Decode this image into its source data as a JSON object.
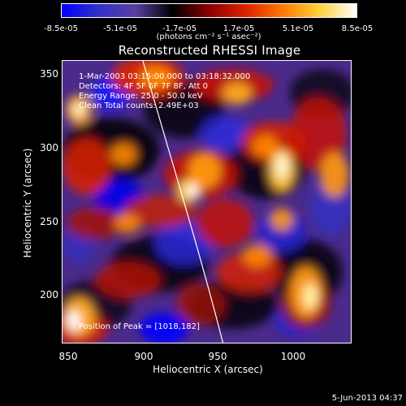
{
  "colorbar": {
    "ticks": [
      "-8.5e-05",
      "-5.1e-05",
      "-1.7e-05",
      "1.7e-05",
      "5.1e-05",
      "8.5e-05"
    ],
    "unit_label": "(photons cm⁻² s⁻¹ asec⁻²)"
  },
  "title": "Reconstructed RHESSI Image",
  "info": {
    "time_range": "1-Mar-2003 03:15:00.000 to 03:18:32.000",
    "detectors": "Detectors: 4F 5F 6F 7F 8F, Att 0",
    "energy_range": "Energy Range: 25.0 - 50.0 keV",
    "clean": "Clean    Total counts: 2.49E+03",
    "peak": "Position of Peak = [1018,182]"
  },
  "x_axis": {
    "label": "Heliocentric X (arcsec)",
    "ticks": [
      "850",
      "900",
      "950",
      "1000"
    ]
  },
  "y_axis": {
    "label": "Heliocentric Y (arcsec)",
    "ticks": [
      "350",
      "300",
      "250",
      "200"
    ]
  },
  "footer": "5-Jun-2013 04:37",
  "colors": {
    "background": "#000000",
    "text": "#ffffff",
    "colormap": [
      "#0000ff",
      "#3030c8",
      "#5a3fa0",
      "#000000",
      "#8b0000",
      "#dd2200",
      "#ff7a00",
      "#ffd23c",
      "#ffffff"
    ]
  }
}
